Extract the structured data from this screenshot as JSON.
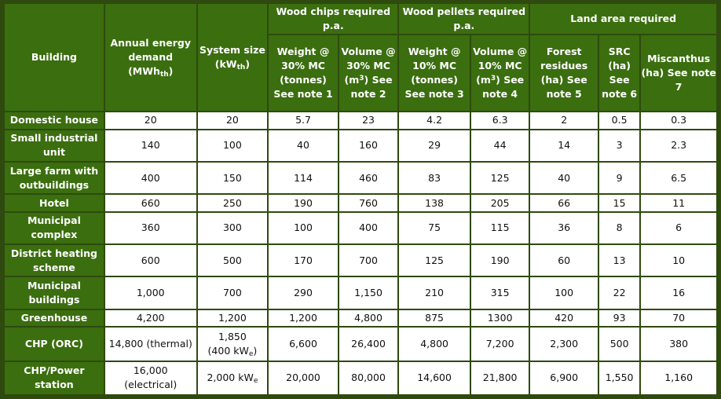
{
  "table": {
    "headers": {
      "building": "Building",
      "energy_demand": {
        "text": "Annual energy demand (MWh",
        "sub": "th",
        "close": ")"
      },
      "system_size": {
        "text": "System size (kW",
        "sub": "th",
        "close": ")"
      },
      "wood_chips_group": "Wood chips required p.a.",
      "wood_pellets_group": "Wood pellets required p.a.",
      "land_area_group": "Land area required",
      "chips_weight": "Weight @ 30% MC (tonnes) See note 1",
      "chips_volume": {
        "text": "Volume @ 30% MC (m",
        "sup": "3",
        "close": ") See note 2"
      },
      "pellets_weight": "Weight @ 10% MC (tonnes) See note 3",
      "pellets_volume": {
        "text": "Volume @ 10% MC (m",
        "sup": "3",
        "close": ") See note 4"
      },
      "forest_residues": "Forest residues (ha) See note 5",
      "src": "SRC (ha) See note 6",
      "miscanthus": "Miscanthus (ha) See note 7"
    },
    "rows": [
      {
        "building": "Domestic house",
        "energy": "20",
        "size": "20",
        "chips_weight": "5.7",
        "chips_volume": "23",
        "pellets_weight": "4.2",
        "pellets_volume": "6.3",
        "forest": "2",
        "src": "0.5",
        "miscanthus": "0.3"
      },
      {
        "building": "Small industrial unit",
        "energy": "140",
        "size": "100",
        "chips_weight": "40",
        "chips_volume": "160",
        "pellets_weight": "29",
        "pellets_volume": "44",
        "forest": "14",
        "src": "3",
        "miscanthus": "2.3"
      },
      {
        "building": "Large farm with outbuildings",
        "energy": "400",
        "size": "150",
        "chips_weight": "114",
        "chips_volume": "460",
        "pellets_weight": "83",
        "pellets_volume": "125",
        "forest": "40",
        "src": "9",
        "miscanthus": "6.5"
      },
      {
        "building": "Hotel",
        "energy": "660",
        "size": "250",
        "chips_weight": "190",
        "chips_volume": "760",
        "pellets_weight": "138",
        "pellets_volume": "205",
        "forest": "66",
        "src": "15",
        "miscanthus": "11"
      },
      {
        "building": "Municipal complex",
        "energy": "360",
        "size": "300",
        "chips_weight": "100",
        "chips_volume": "400",
        "pellets_weight": "75",
        "pellets_volume": "115",
        "forest": "36",
        "src": "8",
        "miscanthus": "6"
      },
      {
        "building": "District heating scheme",
        "energy": "600",
        "size": "500",
        "chips_weight": "170",
        "chips_volume": "700",
        "pellets_weight": "125",
        "pellets_volume": "190",
        "forest": "60",
        "src": "13",
        "miscanthus": "10"
      },
      {
        "building": "Municipal buildings",
        "energy": "1,000",
        "size": "700",
        "chips_weight": "290",
        "chips_volume": "1,150",
        "pellets_weight": "210",
        "pellets_volume": "315",
        "forest": "100",
        "src": "22",
        "miscanthus": "16"
      },
      {
        "building": "Greenhouse",
        "energy": "4,200",
        "size": "1,200",
        "chips_weight": "1,200",
        "chips_volume": "4,800",
        "pellets_weight": "875",
        "pellets_volume": "1300",
        "forest": "420",
        "src": "93",
        "miscanthus": "70"
      },
      {
        "building": "CHP (ORC)",
        "energy": "14,800 (thermal)",
        "size_main": "1,850",
        "size_note": {
          "text": "(400 kW",
          "sub": "e",
          "close": ")"
        },
        "chips_weight": "6,600",
        "chips_volume": "26,400",
        "pellets_weight": "4,800",
        "pellets_volume": "7,200",
        "forest": "2,300",
        "src": "500",
        "miscanthus": "380"
      },
      {
        "building": "CHP/Power station",
        "energy_main": "16,000",
        "energy_note": "(electrical)",
        "size": {
          "text": "2,000 kW",
          "sub": "e"
        },
        "chips_weight": "20,000",
        "chips_volume": "80,000",
        "pellets_weight": "14,600",
        "pellets_volume": "21,800",
        "forest": "6,900",
        "src": "1,550",
        "miscanthus": "1,160"
      }
    ]
  }
}
